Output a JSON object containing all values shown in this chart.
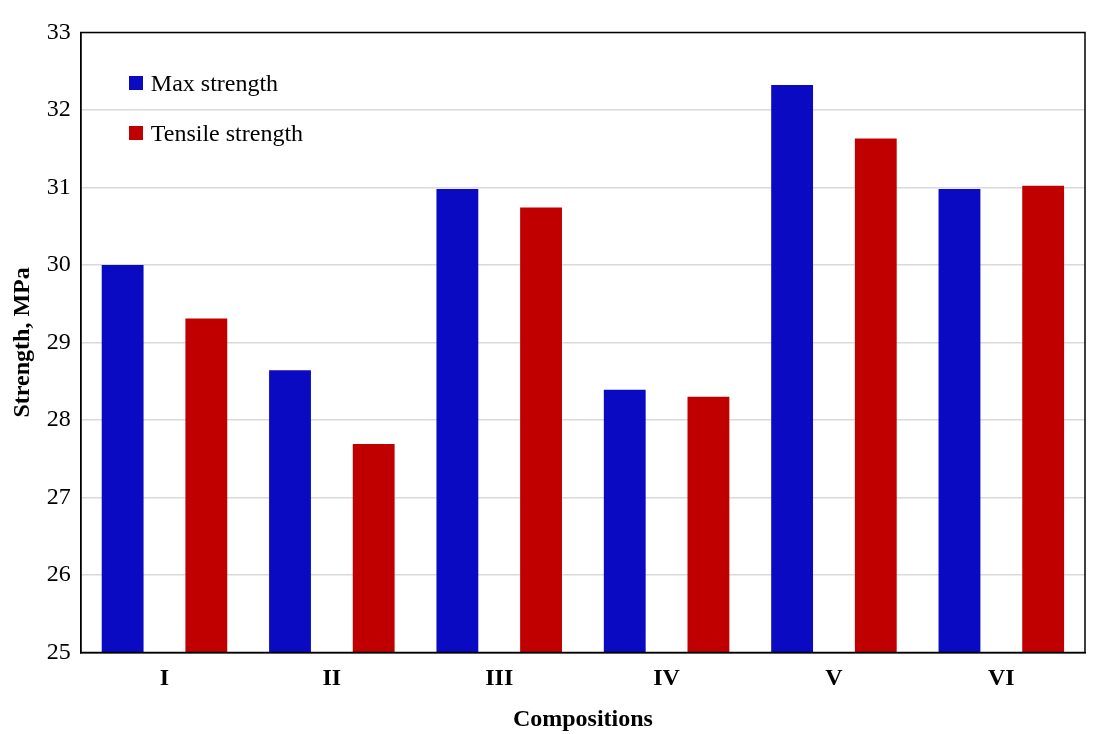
{
  "chart_data": {
    "type": "bar",
    "xlabel": "Compositions",
    "ylabel": "Strength, MPa",
    "categories": [
      "I",
      "II",
      "III",
      "IV",
      "V",
      "VI"
    ],
    "series": [
      {
        "name": "Max strength",
        "color": "#0a0ac2",
        "values": [
          30.0,
          28.64,
          30.98,
          28.39,
          32.32,
          30.98
        ]
      },
      {
        "name": "Tensile strength",
        "color": "#c00000",
        "values": [
          29.31,
          27.69,
          30.74,
          28.3,
          31.63,
          31.02
        ]
      }
    ],
    "ylim": [
      25,
      33
    ],
    "yticks": [
      25,
      26,
      27,
      28,
      29,
      30,
      31,
      32,
      33
    ],
    "grid": "y",
    "legend": "top left"
  }
}
